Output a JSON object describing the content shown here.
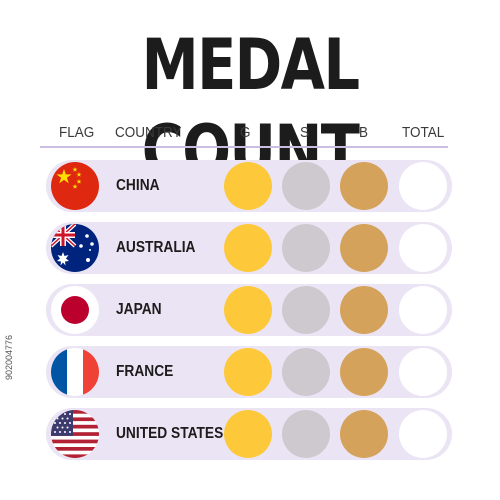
{
  "title": "MEDAL COUNT",
  "header": {
    "flag": "FLAG",
    "country": "COUNTRY",
    "gold": "G",
    "silver": "S",
    "bronze": "B",
    "total": "TOTAL"
  },
  "colors": {
    "gold": "#fdc93a",
    "silver": "#cdc9cf",
    "bronze": "#d4a25b",
    "row_bg": "#ebe4f4",
    "total_bg": "#ffffff"
  },
  "rows": [
    {
      "flag_icon": "china-flag-icon",
      "country": "CHINA"
    },
    {
      "flag_icon": "australia-flag-icon",
      "country": "AUSTRALIA"
    },
    {
      "flag_icon": "japan-flag-icon",
      "country": "JAPAN"
    },
    {
      "flag_icon": "france-flag-icon",
      "country": "FRANCE"
    },
    {
      "flag_icon": "usa-flag-icon",
      "country": "UNITED STATES"
    }
  ],
  "stock_id": "902004776"
}
